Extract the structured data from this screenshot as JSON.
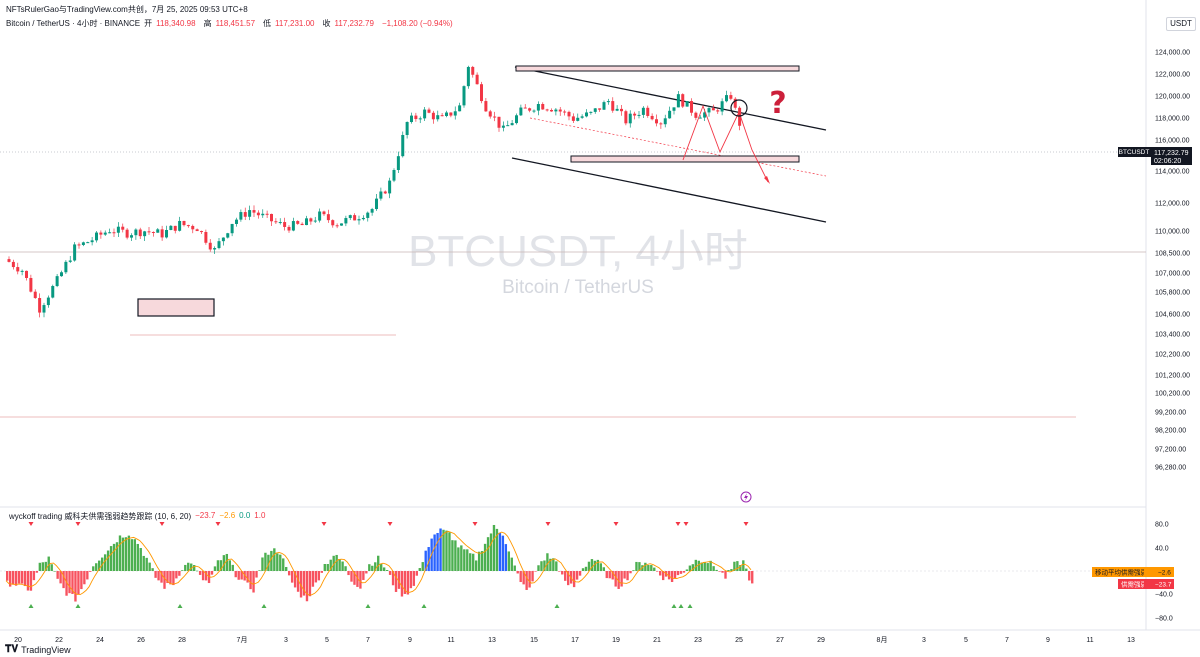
{
  "header": {
    "credit": "NFTsRulerGao与TradingView.com共创，7月 25, 2025 09:53 UTC+8",
    "symbol": "Bitcoin / TetherUS · 4小时 · BINANCE",
    "ohlc": [
      {
        "label": "开",
        "value": "118,340.98"
      },
      {
        "label": "高",
        "value": "118,451.57"
      },
      {
        "label": "低",
        "value": "117,231.00"
      },
      {
        "label": "收",
        "value": "117,232.79"
      },
      {
        "label": "",
        "value": "−1,108.20 (−0.94%)"
      }
    ],
    "currency": "USDT"
  },
  "watermark": {
    "title": "BTCUSDT, 4小时",
    "subtitle": "Bitcoin / TetherUS"
  },
  "annotation": {
    "question": "?"
  },
  "price_badge": {
    "ticker": "BTCUSDT",
    "price": "117,232.79",
    "countdown": "02:06:20"
  },
  "indicator": {
    "name": "wyckoff trading 威科夫供需强弱趋势跟踪 (10, 6, 20)",
    "values": [
      "−23.7",
      "−2.6",
      "0.0",
      "1.0"
    ],
    "labels": [
      {
        "text": "移动平均供需强弱",
        "value": "−2.6",
        "color": "#ff9800"
      },
      {
        "text": "供需强弱",
        "value": "−23.7",
        "color": "#f23645"
      }
    ],
    "axis": [
      "80.0",
      "40.0",
      "−40.0",
      "−80.0"
    ]
  },
  "footer": {
    "brand": "TradingView"
  },
  "chart_data": {
    "type": "candlestick",
    "symbol": "BTCUSDT",
    "interval": "4小时",
    "last_price": 117232.79,
    "ylim": [
      96280,
      124800
    ],
    "y_ticks": [
      124000,
      122000,
      120000,
      118000,
      116000,
      114000,
      112000,
      110000,
      108500,
      107000,
      105800,
      104600,
      103400,
      102200,
      101200,
      100200,
      99200,
      98200,
      97200,
      96280
    ],
    "y_tick_labels": [
      "124,000.00",
      "122,000.00",
      "120,000.00",
      "118,000.00",
      "116,000.00",
      "114,000.00",
      "112,000.00",
      "110,000.00",
      "108,500.00",
      "107,000.00",
      "105,800.00",
      "104,600.00",
      "103,400.00",
      "102,200.00",
      "101,200.00",
      "100,200.00",
      "99,200.00",
      "98,200.00",
      "97,200.00",
      "96,280.00"
    ],
    "x_tick_labels": [
      "20",
      "22",
      "24",
      "26",
      "28",
      "7月",
      "3",
      "5",
      "7",
      "9",
      "11",
      "13",
      "15",
      "17",
      "19",
      "21",
      "23",
      "25",
      "27",
      "29",
      "8月",
      "3",
      "5",
      "7",
      "9",
      "11",
      "13"
    ],
    "colors": {
      "up": "#089981",
      "down": "#f23645",
      "accent": "#f7525f"
    },
    "daily_close_path": [
      [
        0,
        105000
      ],
      [
        2,
        104000
      ],
      [
        4,
        100500
      ],
      [
        6,
        103000
      ],
      [
        8,
        106000
      ],
      [
        10,
        106800
      ],
      [
        12,
        107700
      ],
      [
        14,
        107400
      ],
      [
        16,
        107600
      ],
      [
        18,
        107300
      ],
      [
        20,
        108200
      ],
      [
        22,
        107900
      ],
      [
        24,
        105800
      ],
      [
        26,
        108400
      ],
      [
        28,
        109500
      ],
      [
        30,
        108700
      ],
      [
        32,
        108000
      ],
      [
        34,
        108100
      ],
      [
        36,
        109000
      ],
      [
        38,
        108300
      ],
      [
        40,
        108800
      ],
      [
        42,
        109600
      ],
      [
        44,
        112000
      ],
      [
        46,
        117500
      ],
      [
        48,
        118500
      ],
      [
        50,
        117800
      ],
      [
        52,
        119000
      ],
      [
        53,
        122800
      ],
      [
        55,
        119000
      ],
      [
        57,
        116800
      ],
      [
        59,
        118500
      ],
      [
        61,
        119200
      ],
      [
        63,
        118800
      ],
      [
        65,
        117900
      ],
      [
        67,
        118300
      ],
      [
        69,
        119500
      ],
      [
        71,
        117700
      ],
      [
        73,
        118800
      ],
      [
        75,
        117600
      ],
      [
        77,
        119800
      ],
      [
        79,
        118300
      ],
      [
        81,
        118500
      ],
      [
        83,
        120000
      ],
      [
        84,
        117232.79
      ]
    ],
    "indicator_series": [
      -20,
      -25,
      -30,
      10,
      20,
      -15,
      -35,
      -45,
      -20,
      10,
      25,
      40,
      55,
      60,
      45,
      20,
      -10,
      -25,
      -20,
      5,
      15,
      -10,
      -20,
      15,
      25,
      -5,
      -20,
      -30,
      20,
      35,
      30,
      -10,
      -35,
      -45,
      -20,
      10,
      25,
      15,
      -15,
      -25,
      10,
      20,
      0,
      -30,
      -40,
      -20,
      15,
      55,
      65,
      60,
      40,
      30,
      20,
      45,
      70,
      60,
      20,
      -20,
      -30,
      10,
      25,
      15,
      -20,
      -25,
      5,
      20,
      10,
      -15,
      -25,
      -10,
      10,
      15,
      5,
      -10,
      -15,
      -5,
      10,
      20,
      15,
      5,
      -10,
      10,
      15,
      -23.7
    ]
  }
}
